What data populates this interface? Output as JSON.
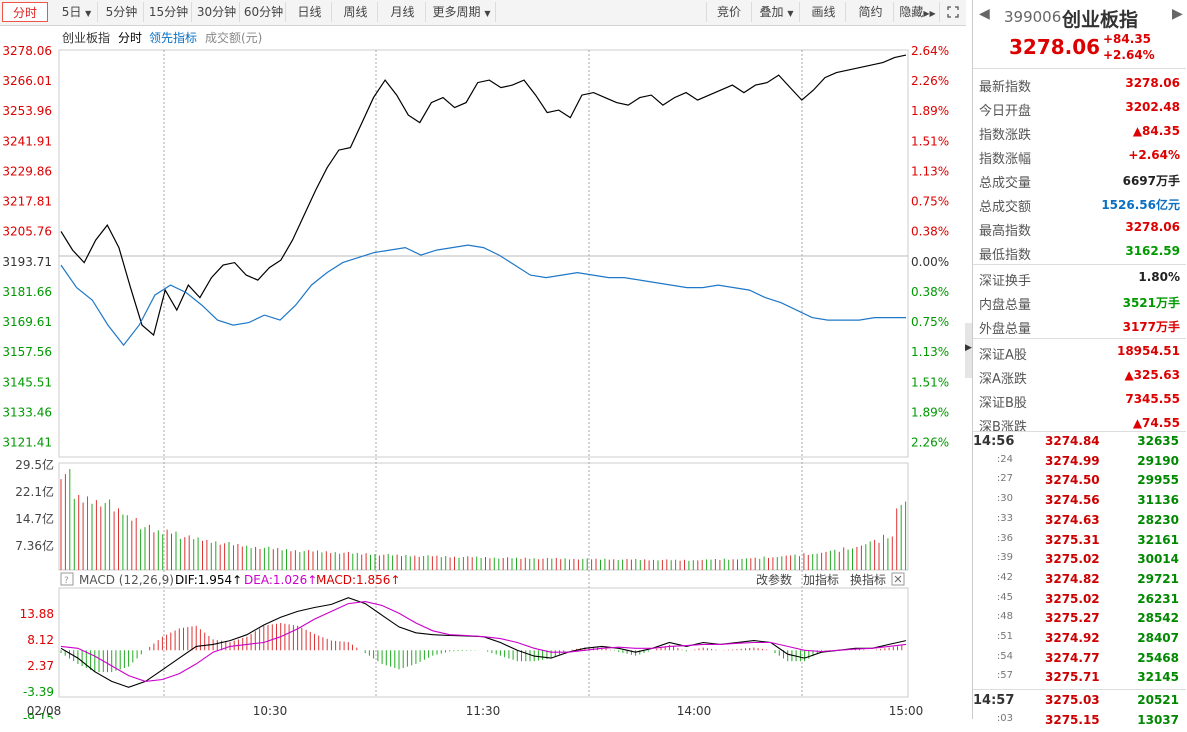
{
  "toolbar": {
    "tabs": [
      "分时",
      "5日",
      "5分钟",
      "15分钟",
      "30分钟",
      "60分钟",
      "日线",
      "周线",
      "月线",
      "更多周期"
    ],
    "right": [
      "竞价",
      "叠加",
      "画线",
      "简约",
      "隐藏"
    ]
  },
  "legend": {
    "name": "创业板指",
    "mode": "分时",
    "indicator": "领先指标",
    "vol": "成交额(元)"
  },
  "price_axis": {
    "left": [
      "3278.06",
      "3266.01",
      "3253.96",
      "3241.91",
      "3229.86",
      "3217.81",
      "3205.76",
      "3193.71",
      "3181.66",
      "3169.61",
      "3157.56",
      "3145.51",
      "3133.46",
      "3121.41"
    ],
    "right": [
      "2.64%",
      "2.26%",
      "1.89%",
      "1.51%",
      "1.13%",
      "0.75%",
      "0.38%",
      "0.00%",
      "0.38%",
      "0.75%",
      "1.13%",
      "1.51%",
      "1.89%",
      "2.26%"
    ]
  },
  "volume_axis": [
    "29.5亿",
    "22.1亿",
    "14.7亿",
    "7.36亿"
  ],
  "macd": {
    "title": "MACD (12,26,9)",
    "dif": "DIF:1.954↑",
    "dea": "DEA:1.026↑",
    "macd": "MACD:1.856↑",
    "links": [
      "改参数",
      "加指标",
      "换指标"
    ],
    "axis": [
      "13.88",
      "8.12",
      "2.37",
      "-3.39",
      "-9.15"
    ]
  },
  "time_axis": [
    "02/08",
    "10:30",
    "11:30",
    "14:00",
    "15:00"
  ],
  "chart_data": {
    "type": "line",
    "title": "创业板指",
    "ylim": [
      3121.41,
      3278.06
    ],
    "series": [
      {
        "name": "创业板指",
        "values": [
          3207.5,
          3200,
          3195,
          3204,
          3210,
          3201,
          3185,
          3170,
          3166,
          3184,
          3176,
          3186,
          3181,
          3189,
          3194,
          3195,
          3190,
          3188,
          3193,
          3196,
          3204,
          3214,
          3224,
          3233,
          3240,
          3241,
          3251,
          3261,
          3268,
          3262,
          3254,
          3251,
          3259,
          3261,
          3257,
          3259,
          3267,
          3268,
          3265,
          3266,
          3268,
          3262,
          3255,
          3256,
          3253,
          3262,
          3263,
          3261,
          3259,
          3258,
          3261,
          3262,
          3258,
          3261,
          3263,
          3260,
          3262,
          3264,
          3266,
          3263,
          3266,
          3267,
          3270,
          3265,
          3260,
          3264,
          3269,
          3271,
          3272,
          3273,
          3274,
          3275,
          3277,
          3278
        ]
      },
      {
        "name": "领先指标",
        "values": [
          3194,
          3185,
          3180,
          3170,
          3162,
          3170,
          3182,
          3186,
          3183,
          3178,
          3172,
          3170,
          3171,
          3174,
          3172,
          3178,
          3186,
          3191,
          3195,
          3197,
          3199,
          3200,
          3201,
          3198,
          3200,
          3201,
          3202,
          3201,
          3198,
          3194,
          3190,
          3189,
          3190,
          3191,
          3190,
          3189,
          3189,
          3188,
          3187,
          3186,
          3185,
          3185,
          3186,
          3185,
          3184,
          3181,
          3179,
          3176,
          3173,
          3172,
          3172,
          3172,
          3173,
          3173,
          3173
        ]
      }
    ],
    "volume": [
      29.5,
      21.9,
      21.5,
      20.6,
      18.0,
      16.0,
      13.2,
      11.6,
      11.8,
      10.1,
      9.5,
      8.8,
      8.2,
      7.6,
      7.1,
      6.8,
      6.4,
      6.1,
      5.8,
      5.7,
      5.5,
      5.3,
      5.0,
      4.9,
      4.7,
      4.5,
      4.4,
      4.3,
      4.2,
      4.1,
      4.0,
      3.9,
      3.8,
      3.7,
      3.6,
      3.6,
      3.5,
      3.5,
      3.4,
      3.4,
      3.3,
      3.3,
      3.2,
      3.2,
      3.1,
      3.1,
      3.0,
      3.0,
      3.1,
      3.2,
      3.3,
      3.4,
      3.6,
      3.9,
      4.2,
      4.5,
      4.9,
      5.3,
      5.9,
      6.6,
      7.5,
      8.8,
      10.3,
      20.0
    ],
    "macd_series": {
      "dif": [
        0.5,
        -2.0,
        -5.5,
        -8.0,
        -9.5,
        -8.0,
        -5.0,
        -2.0,
        1.0,
        1.5,
        2.5,
        4.0,
        6.5,
        8.5,
        10.0,
        11.0,
        11.8,
        13.5,
        12.0,
        9.0,
        6.0,
        4.5,
        4.0,
        3.8,
        3.7,
        3.5,
        2.0,
        0,
        -1.5,
        -2.0,
        -0.5,
        0.5,
        1.0,
        0.5,
        -0.5,
        0.5,
        2.0,
        1.0,
        2.0,
        1.5,
        2.0,
        2.5,
        2.0,
        -1.0,
        -2.0,
        -0.5,
        0,
        0.5,
        0.5,
        1.5,
        2.5
      ],
      "dea": [
        1.0,
        0.5,
        -1.5,
        -4.0,
        -6.5,
        -8.0,
        -7.5,
        -6.0,
        -3.5,
        -0.5,
        1.0,
        1.5,
        2.0,
        3.5,
        5.5,
        8.0,
        10.0,
        12.0,
        12.5,
        11.5,
        9.5,
        7.0,
        5.0,
        4.0,
        3.8,
        3.5,
        3.0,
        2.0,
        0.5,
        -0.5,
        -0.5,
        0,
        0.5,
        0.8,
        0.5,
        0.5,
        1.0,
        1.2,
        1.5,
        1.5,
        1.8,
        2.0,
        2.0,
        1.0,
        0.0,
        -0.3,
        0,
        0.3,
        0.5,
        1.0,
        1.5
      ]
    }
  },
  "quote": {
    "code": "399006",
    "name": "创业板指",
    "price": "3278.06",
    "change": "+84.35",
    "pct": "+2.64%",
    "stats": [
      {
        "label": "最新指数",
        "value": "3278.06",
        "tone": "red"
      },
      {
        "label": "今日开盘",
        "value": "3202.48",
        "tone": "red"
      },
      {
        "label": "指数涨跌",
        "value": "▲84.35",
        "tone": "red"
      },
      {
        "label": "指数涨幅",
        "value": "+2.64%",
        "tone": "red"
      },
      {
        "label": "总成交量",
        "value": "6697万手",
        "tone": "dark"
      },
      {
        "label": "总成交额",
        "value": "1526.56亿元",
        "tone": "blue"
      },
      {
        "label": "最高指数",
        "value": "3278.06",
        "tone": "red"
      },
      {
        "label": "最低指数",
        "value": "3162.59",
        "tone": "green"
      },
      {
        "label": "深证换手",
        "value": "1.80%",
        "tone": "dark"
      },
      {
        "label": "内盘总量",
        "value": "3521万手",
        "tone": "green"
      },
      {
        "label": "外盘总量",
        "value": "3177万手",
        "tone": "red"
      },
      {
        "label": "深证A股",
        "value": "18954.51",
        "tone": "red"
      },
      {
        "label": "深A涨跌",
        "value": "▲325.63",
        "tone": "red"
      },
      {
        "label": "深证B股",
        "value": "7345.55",
        "tone": "red"
      },
      {
        "label": "深B涨跌",
        "value": "▲74.55",
        "tone": "red"
      }
    ],
    "ticks": [
      {
        "t": "14:56",
        "p": "3274.84",
        "v": "32635"
      },
      {
        "t": ":24",
        "p": "3274.99",
        "v": "29190"
      },
      {
        "t": ":27",
        "p": "3274.50",
        "v": "29955"
      },
      {
        "t": ":30",
        "p": "3274.56",
        "v": "31136"
      },
      {
        "t": ":33",
        "p": "3274.63",
        "v": "28230"
      },
      {
        "t": ":36",
        "p": "3275.31",
        "v": "32161"
      },
      {
        "t": ":39",
        "p": "3275.02",
        "v": "30014"
      },
      {
        "t": ":42",
        "p": "3274.82",
        "v": "29721"
      },
      {
        "t": ":45",
        "p": "3275.02",
        "v": "26231"
      },
      {
        "t": ":48",
        "p": "3275.27",
        "v": "28542"
      },
      {
        "t": ":51",
        "p": "3274.92",
        "v": "28407"
      },
      {
        "t": ":54",
        "p": "3274.77",
        "v": "25468"
      },
      {
        "t": ":57",
        "p": "3275.71",
        "v": "32145"
      },
      {
        "t": "14:57",
        "p": "3275.03",
        "v": "20521"
      },
      {
        "t": ":03",
        "p": "3275.15",
        "v": "13037"
      }
    ]
  }
}
